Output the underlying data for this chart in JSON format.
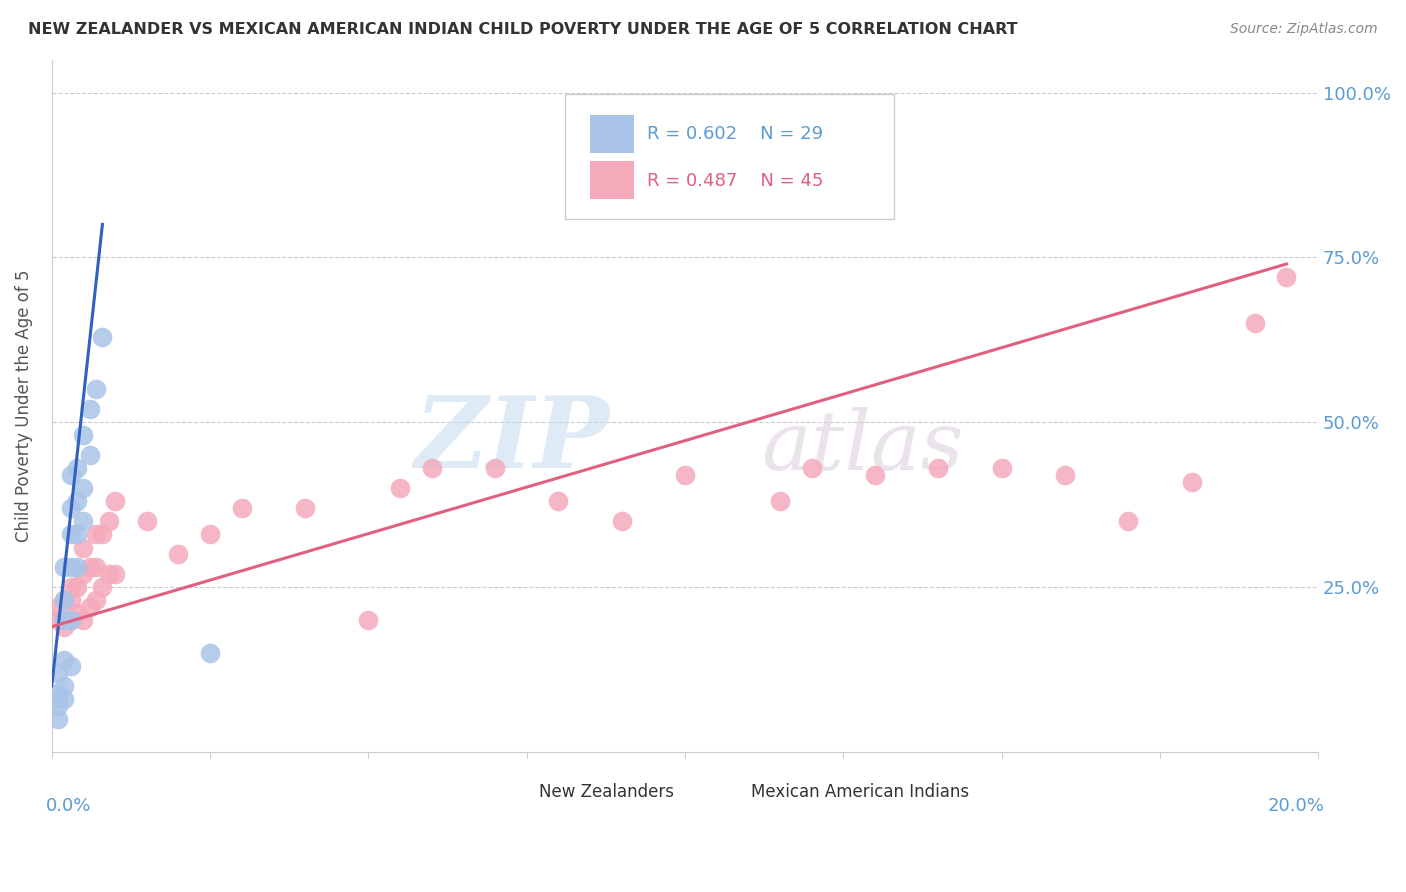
{
  "title": "NEW ZEALANDER VS MEXICAN AMERICAN INDIAN CHILD POVERTY UNDER THE AGE OF 5 CORRELATION CHART",
  "source": "Source: ZipAtlas.com",
  "ylabel": "Child Poverty Under the Age of 5",
  "ytick_labels": [
    "100.0%",
    "75.0%",
    "50.0%",
    "25.0%"
  ],
  "ytick_values": [
    1.0,
    0.75,
    0.5,
    0.25
  ],
  "blue_label": "New Zealanders",
  "pink_label": "Mexican American Indians",
  "blue_R": "R = 0.602",
  "blue_N": "N = 29",
  "pink_R": "R = 0.487",
  "pink_N": "N = 45",
  "blue_color": "#aac4e8",
  "pink_color": "#f4aabb",
  "blue_line_color": "#3060c0",
  "pink_line_color": "#e06080",
  "watermark_zip": "ZIP",
  "watermark_atlas": "atlas",
  "xmin": 0.0,
  "xmax": 0.2,
  "ymin": 0.0,
  "ymax": 1.05,
  "blue_x": [
    0.001,
    0.001,
    0.001,
    0.001,
    0.001,
    0.002,
    0.002,
    0.002,
    0.002,
    0.002,
    0.002,
    0.003,
    0.003,
    0.003,
    0.003,
    0.003,
    0.003,
    0.004,
    0.004,
    0.004,
    0.004,
    0.005,
    0.005,
    0.005,
    0.006,
    0.006,
    0.007,
    0.008,
    0.025
  ],
  "blue_y": [
    0.05,
    0.07,
    0.08,
    0.09,
    0.12,
    0.08,
    0.1,
    0.14,
    0.2,
    0.23,
    0.28,
    0.13,
    0.2,
    0.28,
    0.33,
    0.37,
    0.42,
    0.28,
    0.33,
    0.38,
    0.43,
    0.35,
    0.4,
    0.48,
    0.45,
    0.52,
    0.55,
    0.63,
    0.15
  ],
  "pink_x": [
    0.001,
    0.001,
    0.002,
    0.002,
    0.003,
    0.003,
    0.003,
    0.004,
    0.004,
    0.005,
    0.005,
    0.005,
    0.006,
    0.006,
    0.007,
    0.007,
    0.007,
    0.008,
    0.008,
    0.009,
    0.009,
    0.01,
    0.01,
    0.015,
    0.02,
    0.025,
    0.03,
    0.04,
    0.05,
    0.055,
    0.06,
    0.07,
    0.08,
    0.09,
    0.1,
    0.115,
    0.12,
    0.13,
    0.14,
    0.15,
    0.16,
    0.17,
    0.18,
    0.19,
    0.195
  ],
  "pink_y": [
    0.2,
    0.22,
    0.19,
    0.23,
    0.2,
    0.23,
    0.25,
    0.21,
    0.25,
    0.2,
    0.27,
    0.31,
    0.22,
    0.28,
    0.23,
    0.28,
    0.33,
    0.25,
    0.33,
    0.27,
    0.35,
    0.27,
    0.38,
    0.35,
    0.3,
    0.33,
    0.37,
    0.37,
    0.2,
    0.4,
    0.43,
    0.43,
    0.38,
    0.35,
    0.42,
    0.38,
    0.43,
    0.42,
    0.43,
    0.43,
    0.42,
    0.35,
    0.41,
    0.65,
    0.72
  ],
  "blue_line_x": [
    0.0,
    0.008
  ],
  "blue_line_y": [
    0.1,
    0.8
  ],
  "pink_line_x": [
    0.0,
    0.195
  ],
  "pink_line_y": [
    0.19,
    0.74
  ]
}
